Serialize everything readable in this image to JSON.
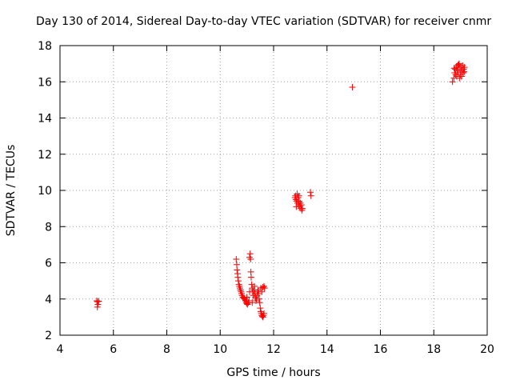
{
  "chart_data": {
    "type": "scatter",
    "title": "Day 130 of 2014, Sidereal Day-to-day VTEC variation (SDTVAR) for receiver cnmr",
    "xlabel": "GPS time / hours",
    "ylabel": "SDTVAR / TECUs",
    "xlim": [
      4,
      20
    ],
    "ylim": [
      2,
      18
    ],
    "xticks": [
      4,
      6,
      8,
      10,
      12,
      14,
      16,
      18,
      20
    ],
    "yticks": [
      2,
      4,
      6,
      8,
      10,
      12,
      14,
      16,
      18
    ],
    "grid": true,
    "marker": "plus",
    "color": "#ff0000",
    "series": [
      {
        "name": "SDTVAR",
        "points": [
          [
            5.38,
            3.9
          ],
          [
            5.4,
            3.85
          ],
          [
            5.42,
            3.7
          ],
          [
            5.45,
            3.88
          ],
          [
            5.4,
            3.55
          ],
          [
            10.6,
            6.2
          ],
          [
            10.62,
            5.9
          ],
          [
            10.63,
            5.6
          ],
          [
            10.65,
            5.4
          ],
          [
            10.66,
            5.2
          ],
          [
            10.68,
            5.0
          ],
          [
            10.7,
            4.8
          ],
          [
            10.72,
            4.7
          ],
          [
            10.74,
            4.6
          ],
          [
            10.76,
            4.5
          ],
          [
            10.78,
            4.4
          ],
          [
            10.8,
            4.3
          ],
          [
            10.82,
            4.2
          ],
          [
            10.85,
            4.1
          ],
          [
            10.88,
            4.05
          ],
          [
            10.9,
            4.0
          ],
          [
            10.92,
            4.0
          ],
          [
            10.95,
            3.9
          ],
          [
            10.98,
            3.8
          ],
          [
            11.0,
            3.75
          ],
          [
            11.02,
            3.7
          ],
          [
            11.05,
            3.8
          ],
          [
            11.08,
            3.9
          ],
          [
            11.1,
            6.3
          ],
          [
            11.12,
            6.5
          ],
          [
            11.14,
            6.2
          ],
          [
            11.15,
            5.5
          ],
          [
            11.16,
            5.2
          ],
          [
            11.18,
            4.8
          ],
          [
            11.2,
            4.6
          ],
          [
            11.22,
            4.4
          ],
          [
            11.24,
            4.2
          ],
          [
            11.26,
            4.5
          ],
          [
            11.28,
            4.7
          ],
          [
            11.3,
            4.3
          ],
          [
            11.32,
            4.1
          ],
          [
            11.34,
            3.9
          ],
          [
            11.36,
            4.0
          ],
          [
            11.38,
            4.2
          ],
          [
            11.4,
            4.4
          ],
          [
            11.42,
            4.5
          ],
          [
            11.44,
            4.3
          ],
          [
            11.46,
            4.0
          ],
          [
            11.48,
            3.8
          ],
          [
            11.5,
            3.5
          ],
          [
            11.52,
            3.3
          ],
          [
            11.54,
            3.2
          ],
          [
            11.56,
            3.1
          ],
          [
            11.58,
            3.05
          ],
          [
            11.6,
            3.0
          ],
          [
            11.62,
            3.1
          ],
          [
            11.64,
            3.2
          ],
          [
            11.52,
            4.6
          ],
          [
            11.56,
            4.4
          ],
          [
            11.6,
            4.65
          ],
          [
            11.64,
            4.7
          ],
          [
            11.66,
            4.6
          ],
          [
            11.0,
            4.1
          ],
          [
            11.1,
            4.4
          ],
          [
            11.2,
            3.8
          ],
          [
            12.8,
            9.6
          ],
          [
            12.82,
            9.7
          ],
          [
            12.84,
            9.5
          ],
          [
            12.86,
            9.4
          ],
          [
            12.88,
            9.8
          ],
          [
            12.9,
            9.3
          ],
          [
            12.92,
            9.6
          ],
          [
            12.94,
            9.2
          ],
          [
            12.96,
            9.4
          ],
          [
            12.98,
            9.1
          ],
          [
            13.0,
            9.3
          ],
          [
            13.02,
            9.0
          ],
          [
            13.04,
            9.2
          ],
          [
            13.06,
            8.9
          ],
          [
            13.08,
            9.0
          ],
          [
            12.85,
            9.1
          ],
          [
            12.95,
            9.7
          ],
          [
            13.38,
            9.9
          ],
          [
            13.4,
            9.7
          ],
          [
            14.95,
            15.7
          ],
          [
            18.7,
            16.0
          ],
          [
            18.75,
            16.2
          ],
          [
            18.78,
            16.5
          ],
          [
            18.8,
            16.7
          ],
          [
            18.82,
            16.4
          ],
          [
            18.85,
            16.8
          ],
          [
            18.88,
            16.6
          ],
          [
            18.9,
            16.9
          ],
          [
            18.92,
            16.5
          ],
          [
            18.95,
            17.0
          ],
          [
            18.98,
            16.7
          ],
          [
            19.0,
            16.4
          ],
          [
            19.02,
            16.8
          ],
          [
            19.05,
            16.6
          ],
          [
            19.08,
            16.9
          ],
          [
            19.1,
            16.5
          ],
          [
            19.12,
            16.7
          ],
          [
            19.15,
            16.8
          ],
          [
            18.86,
            16.3
          ],
          [
            18.96,
            16.2
          ],
          [
            19.04,
            16.3
          ],
          [
            18.76,
            16.75
          ],
          [
            18.92,
            16.95
          ],
          [
            19.14,
            16.55
          ]
        ]
      }
    ]
  }
}
